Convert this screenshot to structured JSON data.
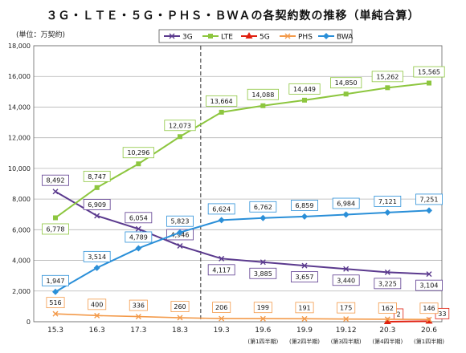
{
  "chart_data": {
    "type": "line",
    "title": "３Ｇ・ＬＴＥ・５Ｇ・ＰＨＳ・ＢＷＡの各契約数の推移（単純合算）",
    "ylabel": "(単位：万契約)",
    "xlabel": "",
    "categories": [
      "15.3",
      "16.3",
      "17.3",
      "18.3",
      "19.3",
      "19.6",
      "19.9",
      "19.12",
      "20.3",
      "20.6"
    ],
    "category_sublabels": [
      "",
      "",
      "",
      "",
      "",
      "(第1四半期)",
      "(第2四半期)",
      "(第3四半期)",
      "(第4四半期)",
      "(第1四半期)"
    ],
    "ylim": [
      0,
      18000
    ],
    "yticks": [
      0,
      2000,
      4000,
      6000,
      8000,
      10000,
      12000,
      14000,
      16000,
      18000
    ],
    "ytick_labels": [
      "0",
      "2,000",
      "4,000",
      "6,000",
      "8,000",
      "10,000",
      "12,000",
      "14,000",
      "16,000",
      "18,000"
    ],
    "grid": true,
    "legend_position": "top",
    "divider_after_category": "18.3",
    "series": [
      {
        "name": "3G",
        "color": "#5b3a8e",
        "marker": "x",
        "values": [
          8492,
          6909,
          6054,
          4946,
          4117,
          3885,
          3657,
          3440,
          3225,
          3104
        ],
        "labels": [
          "8,492",
          "6,909",
          "6,054",
          "4,946",
          "4,117",
          "3,885",
          "3,657",
          "3,440",
          "3,225",
          "3,104"
        ]
      },
      {
        "name": "LTE",
        "color": "#8dc63f",
        "marker": "square",
        "values": [
          6778,
          8747,
          10296,
          12073,
          13664,
          14088,
          14449,
          14850,
          15262,
          15565
        ],
        "labels": [
          "6,778",
          "8,747",
          "10,296",
          "12,073",
          "13,664",
          "14,088",
          "14,449",
          "14,850",
          "15,262",
          "15,565"
        ]
      },
      {
        "name": "5G",
        "color": "#e02010",
        "marker": "triangle",
        "values": [
          null,
          null,
          null,
          null,
          null,
          null,
          null,
          null,
          2,
          33
        ],
        "labels": [
          "",
          "",
          "",
          "",
          "",
          "",
          "",
          "",
          "2",
          "33"
        ]
      },
      {
        "name": "PHS",
        "color": "#f39a4a",
        "marker": "x",
        "values": [
          516,
          400,
          336,
          260,
          206,
          199,
          191,
          175,
          162,
          146
        ],
        "labels": [
          "516",
          "400",
          "336",
          "260",
          "206",
          "199",
          "191",
          "175",
          "162",
          "146"
        ]
      },
      {
        "name": "BWA",
        "color": "#2a8fd8",
        "marker": "diamond",
        "values": [
          1947,
          3514,
          4789,
          5823,
          6624,
          6762,
          6859,
          6984,
          7121,
          7251
        ],
        "labels": [
          "1,947",
          "3,514",
          "4,789",
          "5,823",
          "6,624",
          "6,762",
          "6,859",
          "6,984",
          "7,121",
          "7,251"
        ]
      }
    ]
  }
}
